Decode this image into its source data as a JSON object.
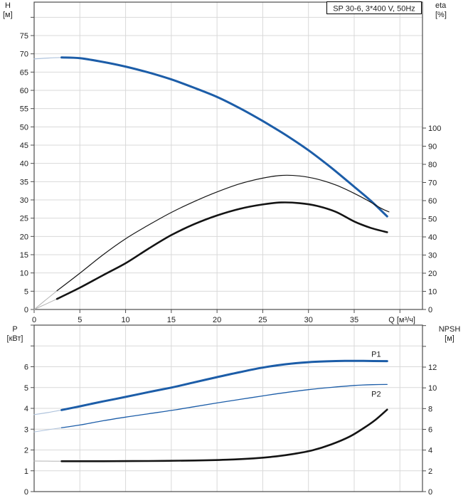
{
  "title_box": "SP 30-6, 3*400 V, 50Hz",
  "axis_titles": {
    "h": [
      "H",
      "[м]"
    ],
    "eta": [
      "eta",
      "[%]"
    ],
    "p": [
      "P",
      "[кВт]"
    ],
    "npsh": [
      "NPSH",
      "[м]"
    ],
    "q": "Q [м³/ч]"
  },
  "colors": {
    "accent_blue": "#1c5da8",
    "light_blue": "#b0c4dd",
    "curve_black": "#141414",
    "gray_lead": "#b3b3b3",
    "grid": "#d9d9d9",
    "axis": "#4d4d4d",
    "text": "#212121",
    "box_border": "#000000",
    "blue_label": "#1c5da8"
  },
  "chart_data": [
    {
      "type": "line",
      "name": "hq-efficiency-chart",
      "title": "SP 30-6, 3*400 V, 50Hz",
      "x_axis": {
        "name": "q-axis",
        "title": "Q [м³/ч]",
        "ticks": [
          0,
          5,
          10,
          15,
          20,
          25,
          30,
          35,
          40
        ],
        "labels": [
          0,
          5,
          10,
          15,
          20,
          25,
          30,
          35
        ],
        "grid": [
          5,
          10,
          15,
          20,
          25,
          30,
          35,
          40
        ],
        "range": [
          0,
          42.5
        ]
      },
      "left_axis": {
        "name": "h-axis",
        "title": "H [м]",
        "ticks": [
          0,
          5,
          10,
          15,
          20,
          25,
          30,
          35,
          40,
          45,
          50,
          55,
          60,
          65,
          70,
          75,
          80
        ],
        "labels": [
          0,
          5,
          10,
          15,
          20,
          25,
          30,
          35,
          40,
          45,
          50,
          55,
          60,
          65,
          70,
          75
        ],
        "grid": [
          5,
          10,
          15,
          20,
          25,
          30,
          35,
          40,
          45,
          50,
          55,
          60,
          65,
          70,
          75,
          80
        ],
        "range": [
          0,
          84.2
        ]
      },
      "right_axis": {
        "name": "eta-axis",
        "title": "eta [%]",
        "ticks": [
          0,
          10,
          20,
          30,
          40,
          50,
          60,
          70,
          80,
          90,
          100
        ],
        "labels": [
          0,
          10,
          20,
          30,
          40,
          50,
          60,
          70,
          80,
          90,
          100
        ],
        "grid": [],
        "range": [
          0,
          100
        ]
      },
      "series": [
        {
          "name": "head-curve-lead",
          "axis": "left",
          "color": "light_blue",
          "width": 1.2,
          "points": [
            [
              0,
              68.6
            ],
            [
              1.5,
              68.85
            ],
            [
              3,
              69.0
            ]
          ]
        },
        {
          "name": "head-curve",
          "axis": "left",
          "color": "accent_blue",
          "width": 3,
          "points": [
            [
              3,
              69.0
            ],
            [
              5,
              68.8
            ],
            [
              7.5,
              67.8
            ],
            [
              10,
              66.5
            ],
            [
              12.5,
              64.9
            ],
            [
              15,
              63.0
            ],
            [
              17.5,
              60.7
            ],
            [
              20,
              58.2
            ],
            [
              22.5,
              55.1
            ],
            [
              25,
              51.6
            ],
            [
              27.5,
              47.8
            ],
            [
              30,
              43.6
            ],
            [
              32.5,
              38.8
            ],
            [
              35,
              33.6
            ],
            [
              36.8,
              29.8
            ],
            [
              38.6,
              25.5
            ]
          ]
        },
        {
          "name": "efficiency-pump-lead",
          "axis": "right",
          "color": "gray_lead",
          "width": 1,
          "points": [
            [
              0,
              0
            ],
            [
              1.2,
              5.0
            ],
            [
              2.5,
              10.3
            ]
          ]
        },
        {
          "name": "efficiency-pump-curve",
          "axis": "right",
          "color": "curve_black",
          "width": 1.2,
          "points": [
            [
              2.5,
              10.3
            ],
            [
              5,
              20.0
            ],
            [
              7.5,
              30.0
            ],
            [
              10,
              39.0
            ],
            [
              12.5,
              46.5
            ],
            [
              15,
              53.5
            ],
            [
              17.5,
              59.5
            ],
            [
              20,
              64.8
            ],
            [
              22.5,
              69.3
            ],
            [
              25,
              72.4
            ],
            [
              27,
              73.9
            ],
            [
              29,
              73.6
            ],
            [
              31,
              71.8
            ],
            [
              33,
              68.6
            ],
            [
              35,
              64.0
            ],
            [
              36.5,
              60.0
            ],
            [
              38,
              55.6
            ],
            [
              38.8,
              53.8
            ]
          ]
        },
        {
          "name": "efficiency-total-lead",
          "axis": "right",
          "color": "gray_lead",
          "width": 1,
          "points": [
            [
              0,
              0
            ],
            [
              1.2,
              2.8
            ],
            [
              2.5,
              5.8
            ]
          ]
        },
        {
          "name": "efficiency-total-curve",
          "axis": "right",
          "color": "curve_black",
          "width": 2.6,
          "points": [
            [
              2.5,
              5.8
            ],
            [
              5,
              12.0
            ],
            [
              7.5,
              18.8
            ],
            [
              10,
              25.5
            ],
            [
              12.5,
              33.5
            ],
            [
              15,
              41.0
            ],
            [
              17.5,
              47.0
            ],
            [
              20,
              51.8
            ],
            [
              22.5,
              55.5
            ],
            [
              25,
              57.9
            ],
            [
              27,
              59.0
            ],
            [
              29,
              58.6
            ],
            [
              31,
              57.0
            ],
            [
              33,
              53.8
            ],
            [
              35,
              48.5
            ],
            [
              36.8,
              45.0
            ],
            [
              38.6,
              42.6
            ]
          ]
        }
      ]
    },
    {
      "type": "line",
      "name": "power-npsh-chart",
      "x_axis": {
        "name": "q-axis-bottom",
        "title": "",
        "ticks": [],
        "labels": [],
        "grid": [
          5,
          10,
          15,
          20,
          25,
          30,
          35,
          40
        ],
        "range": [
          0,
          42.5
        ]
      },
      "left_axis": {
        "name": "p-axis",
        "title": "P [кВт]",
        "ticks": [
          0,
          1,
          2,
          3,
          4,
          5,
          6,
          7,
          8
        ],
        "labels": [
          0,
          1,
          2,
          3,
          4,
          5,
          6
        ],
        "grid": [
          1,
          2,
          3,
          4,
          5,
          6,
          7
        ],
        "range": [
          0,
          8
        ]
      },
      "right_axis": {
        "name": "npsh-axis",
        "title": "NPSH [м]",
        "ticks": [
          0,
          2,
          4,
          6,
          8,
          10,
          12,
          14,
          16
        ],
        "labels": [
          0,
          2,
          4,
          6,
          8,
          10,
          12
        ],
        "grid": [],
        "range": [
          0,
          16
        ]
      },
      "series": [
        {
          "name": "p1-curve-lead",
          "axis": "left",
          "color": "light_blue",
          "width": 1.2,
          "points": [
            [
              0,
              3.7
            ],
            [
              1.5,
              3.8
            ],
            [
              3,
              3.92
            ]
          ]
        },
        {
          "name": "p1-curve",
          "axis": "left",
          "color": "accent_blue",
          "width": 3,
          "label": {
            "text": "P1",
            "q": 37.4,
            "v": 6.62
          },
          "points": [
            [
              3,
              3.92
            ],
            [
              5,
              4.1
            ],
            [
              7.5,
              4.33
            ],
            [
              10,
              4.55
            ],
            [
              12.5,
              4.78
            ],
            [
              15,
              5.0
            ],
            [
              17.5,
              5.25
            ],
            [
              20,
              5.5
            ],
            [
              22.5,
              5.74
            ],
            [
              25,
              5.96
            ],
            [
              27.5,
              6.12
            ],
            [
              30,
              6.22
            ],
            [
              32,
              6.26
            ],
            [
              34,
              6.28
            ],
            [
              36,
              6.28
            ],
            [
              38.6,
              6.27
            ]
          ]
        },
        {
          "name": "p2-curve-lead",
          "axis": "left",
          "color": "light_blue",
          "width": 1,
          "points": [
            [
              0,
              2.87
            ],
            [
              1.5,
              2.97
            ],
            [
              3,
              3.07
            ]
          ]
        },
        {
          "name": "p2-curve",
          "axis": "left",
          "color": "accent_blue",
          "width": 1.3,
          "label": {
            "text": "P2",
            "q": 37.4,
            "v": 4.7
          },
          "points": [
            [
              3,
              3.07
            ],
            [
              5,
              3.2
            ],
            [
              7.5,
              3.4
            ],
            [
              10,
              3.58
            ],
            [
              12.5,
              3.74
            ],
            [
              15,
              3.9
            ],
            [
              17.5,
              4.08
            ],
            [
              20,
              4.26
            ],
            [
              22.5,
              4.43
            ],
            [
              25,
              4.6
            ],
            [
              27.5,
              4.76
            ],
            [
              30,
              4.9
            ],
            [
              32.5,
              5.01
            ],
            [
              35,
              5.1
            ],
            [
              37,
              5.14
            ],
            [
              38.6,
              5.15
            ]
          ]
        },
        {
          "name": "npsh-curve-lead",
          "axis": "right",
          "color": "gray_lead",
          "width": 1,
          "points": [
            [
              0,
              2.95
            ],
            [
              1.5,
              2.94
            ],
            [
              3,
              2.93
            ]
          ]
        },
        {
          "name": "npsh-curve",
          "axis": "right",
          "color": "curve_black",
          "width": 2.6,
          "points": [
            [
              3,
              2.93
            ],
            [
              7.5,
              2.93
            ],
            [
              12.5,
              2.95
            ],
            [
              17.5,
              3.0
            ],
            [
              21,
              3.07
            ],
            [
              24,
              3.2
            ],
            [
              26.5,
              3.4
            ],
            [
              28.5,
              3.65
            ],
            [
              30.5,
              4.0
            ],
            [
              32.5,
              4.55
            ],
            [
              34.5,
              5.3
            ],
            [
              36,
              6.1
            ],
            [
              37.3,
              6.9
            ],
            [
              38.6,
              7.9
            ]
          ]
        }
      ]
    }
  ]
}
